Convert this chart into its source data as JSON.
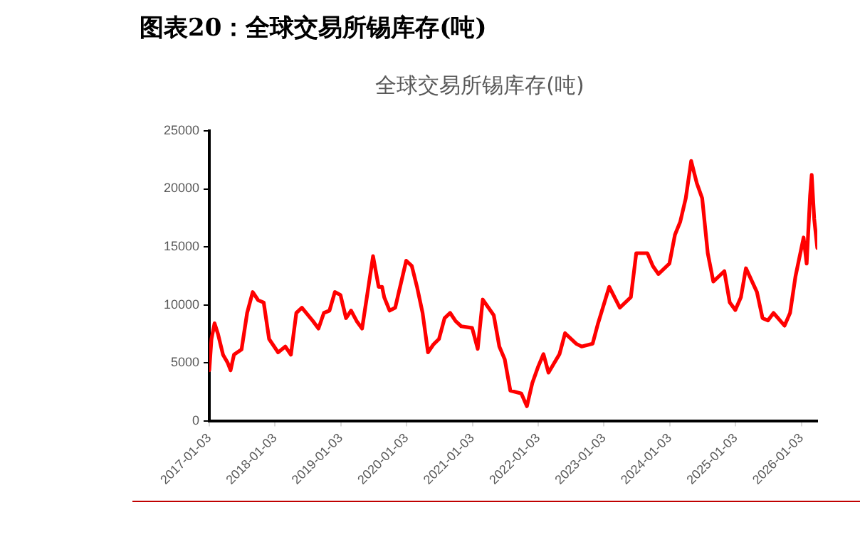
{
  "chart_data": {
    "type": "line",
    "title": "图表20：全球交易所锡库存(吨)",
    "subtitle": "全球交易所锡库存(吨)",
    "x": [
      "2017-01-03",
      "2017-01-15",
      "2017-02-01",
      "2017-02-20",
      "2017-03-20",
      "2017-04-15",
      "2017-05-01",
      "2017-05-20",
      "2017-07-01",
      "2017-08-01",
      "2017-09-01",
      "2017-10-01",
      "2017-11-01",
      "2017-12-01",
      "2018-01-20",
      "2018-03-01",
      "2018-04-01",
      "2018-05-01",
      "2018-06-01",
      "2018-08-01",
      "2018-09-01",
      "2018-10-01",
      "2018-11-01",
      "2018-12-01",
      "2019-01-01",
      "2019-02-01",
      "2019-03-01",
      "2019-04-01",
      "2019-05-01",
      "2019-06-01",
      "2019-07-01",
      "2019-08-01",
      "2019-08-20",
      "2019-09-01",
      "2019-10-01",
      "2019-11-01",
      "2020-01-01",
      "2020-02-01",
      "2020-03-01",
      "2020-04-01",
      "2020-05-01",
      "2020-06-01",
      "2020-07-01",
      "2020-08-01",
      "2020-09-01",
      "2020-10-01",
      "2020-11-01",
      "2021-01-01",
      "2021-02-01",
      "2021-03-01",
      "2021-05-01",
      "2021-06-01",
      "2021-07-01",
      "2021-08-01",
      "2021-10-01",
      "2021-11-01",
      "2021-12-01",
      "2022-01-01",
      "2022-02-01",
      "2022-03-01",
      "2022-05-01",
      "2022-06-01",
      "2022-08-01",
      "2022-09-01",
      "2022-11-01",
      "2022-12-01",
      "2023-02-01",
      "2023-04-01",
      "2023-06-01",
      "2023-07-01",
      "2023-09-01",
      "2023-10-01",
      "2023-11-01",
      "2024-01-01",
      "2024-02-01",
      "2024-03-01",
      "2024-04-01",
      "2024-05-01",
      "2024-06-01",
      "2024-07-01",
      "2024-08-01",
      "2024-09-01",
      "2024-11-01",
      "2024-12-01",
      "2025-01-01",
      "2025-02-01",
      "2025-03-01",
      "2025-05-01",
      "2025-06-01",
      "2025-07-01",
      "2025-08-01",
      "2025-10-01",
      "2025-11-01",
      "2025-12-01",
      "2026-01-15",
      "2026-02-01",
      "2026-02-20",
      "2026-03-01",
      "2026-03-15",
      "2026-04-01"
    ],
    "series": [
      {
        "color": "#ff0000",
        "values": [
          4350,
          7050,
          8400,
          7500,
          5700,
          5000,
          4350,
          5700,
          6150,
          9300,
          11100,
          10400,
          10200,
          7050,
          5900,
          6400,
          5700,
          9300,
          9750,
          8600,
          7950,
          9300,
          9500,
          11100,
          10850,
          8850,
          9500,
          8600,
          7950,
          11100,
          14200,
          11550,
          11550,
          10650,
          9500,
          9750,
          13800,
          13350,
          11550,
          9300,
          5900,
          6600,
          7050,
          8850,
          9300,
          8600,
          8150,
          8000,
          6200,
          10450,
          9100,
          6400,
          5300,
          2600,
          2350,
          1250,
          3250,
          4600,
          5750,
          4150,
          5750,
          7550,
          6650,
          6400,
          6650,
          8400,
          11550,
          9750,
          10650,
          14450,
          14450,
          13350,
          12650,
          13550,
          16050,
          17150,
          19200,
          22400,
          20500,
          19200,
          14450,
          12000,
          12900,
          10200,
          9550,
          10650,
          13150,
          11100,
          8850,
          8650,
          9300,
          8200,
          9300,
          12450,
          15800,
          13550,
          19400,
          21200,
          17400,
          14900
        ]
      }
    ],
    "xlim": [
      "2017-01-03",
      "2026-04-01"
    ],
    "xticks": [
      "2017-01-03",
      "2018-01-03",
      "2019-01-03",
      "2020-01-03",
      "2021-01-03",
      "2022-01-03",
      "2023-01-03",
      "2024-01-03",
      "2025-01-03",
      "2026-01-03"
    ],
    "ylim": [
      0,
      25000
    ],
    "yticks": [
      0,
      5000,
      10000,
      15000,
      20000,
      25000
    ],
    "grid": false,
    "legend": false,
    "marker": "none",
    "line_style": "solid"
  }
}
